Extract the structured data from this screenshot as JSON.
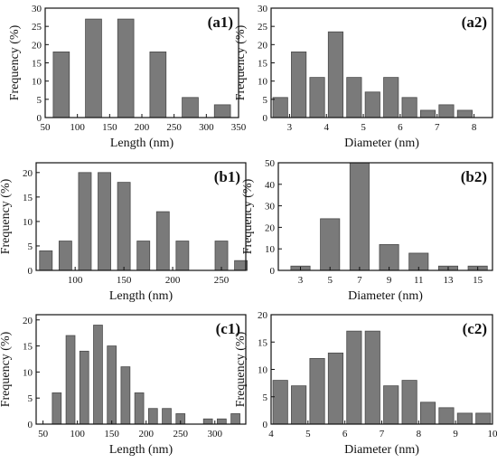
{
  "chart_data": [
    {
      "type": "bar",
      "panel_label": "(a1)",
      "xlabel": "Length (nm)",
      "ylabel": "Frequency (%)",
      "xlim": [
        50,
        350
      ],
      "ylim": [
        0,
        30
      ],
      "xticks": [
        50,
        100,
        150,
        200,
        250,
        300,
        350
      ],
      "yticks": [
        0,
        5,
        10,
        15,
        20,
        25,
        30
      ],
      "bar_width": 25,
      "x": [
        75,
        125,
        175,
        225,
        275,
        325
      ],
      "values": [
        18,
        27,
        27,
        18,
        5.5,
        3.5
      ]
    },
    {
      "type": "bar",
      "panel_label": "(a2)",
      "xlabel": "Diameter (nm)",
      "ylabel": "Frequency (%)",
      "xlim": [
        2.5,
        8.5
      ],
      "ylim": [
        0,
        30
      ],
      "xticks": [
        3,
        4,
        5,
        6,
        7,
        8
      ],
      "yticks": [
        0,
        5,
        10,
        15,
        20,
        25,
        30
      ],
      "bar_width": 0.4,
      "x": [
        2.75,
        3.25,
        3.75,
        4.25,
        4.75,
        5.25,
        5.75,
        6.25,
        6.75,
        7.25,
        7.75
      ],
      "values": [
        5.5,
        18,
        11,
        23.5,
        11,
        7,
        11,
        5.5,
        2,
        3.5,
        2
      ]
    },
    {
      "type": "bar",
      "panel_label": "(b1)",
      "xlabel": "Length (nm)",
      "ylabel": "Frequency (%)",
      "xlim": [
        60,
        275
      ],
      "ylim": [
        0,
        22
      ],
      "xticks": [
        100,
        150,
        200,
        250
      ],
      "yticks": [
        0,
        5,
        10,
        15,
        20
      ],
      "bar_width": 13,
      "x": [
        70,
        90,
        110,
        130,
        150,
        170,
        190,
        210,
        250,
        270
      ],
      "values": [
        4,
        6,
        20,
        20,
        18,
        6,
        12,
        6,
        6,
        2
      ]
    },
    {
      "type": "bar",
      "panel_label": "(b2)",
      "xlabel": "Diameter (nm)",
      "ylabel": "Frequency (%)",
      "xlim": [
        1.5,
        16
      ],
      "ylim": [
        0,
        50
      ],
      "xticks": [
        3,
        5,
        7,
        9,
        11,
        13,
        15
      ],
      "yticks": [
        0,
        10,
        20,
        30,
        40,
        50
      ],
      "bar_width": 1.3,
      "x": [
        3,
        5,
        7,
        9,
        11,
        13,
        15
      ],
      "values": [
        2,
        24,
        50,
        12,
        8,
        2,
        2
      ]
    },
    {
      "type": "bar",
      "panel_label": "(c1)",
      "xlabel": "Length (nm)",
      "ylabel": "Frequency (%)",
      "xlim": [
        40,
        345
      ],
      "ylim": [
        0,
        21
      ],
      "xticks": [
        50,
        100,
        150,
        200,
        250,
        300
      ],
      "yticks": [
        0,
        5,
        10,
        15,
        20
      ],
      "bar_width": 13,
      "x": [
        70,
        90,
        110,
        130,
        150,
        170,
        190,
        210,
        230,
        250,
        290,
        310,
        330
      ],
      "values": [
        6,
        17,
        14,
        19,
        15,
        11,
        6,
        3,
        3,
        2,
        1,
        1,
        2
      ]
    },
    {
      "type": "bar",
      "panel_label": "(c2)",
      "xlabel": "Diameter (nm)",
      "ylabel": "Frequency (%)",
      "xlim": [
        4,
        10
      ],
      "ylim": [
        0,
        20
      ],
      "xticks": [
        4,
        5,
        6,
        7,
        8,
        9,
        10
      ],
      "yticks": [
        0,
        5,
        10,
        15,
        20
      ],
      "bar_width": 0.4,
      "x": [
        4.25,
        4.75,
        5.25,
        5.75,
        6.25,
        6.75,
        7.25,
        7.75,
        8.25,
        8.75,
        9.25,
        9.75
      ],
      "values": [
        8,
        7,
        12,
        13,
        17,
        17,
        7,
        8,
        4,
        3,
        2,
        2
      ]
    }
  ]
}
